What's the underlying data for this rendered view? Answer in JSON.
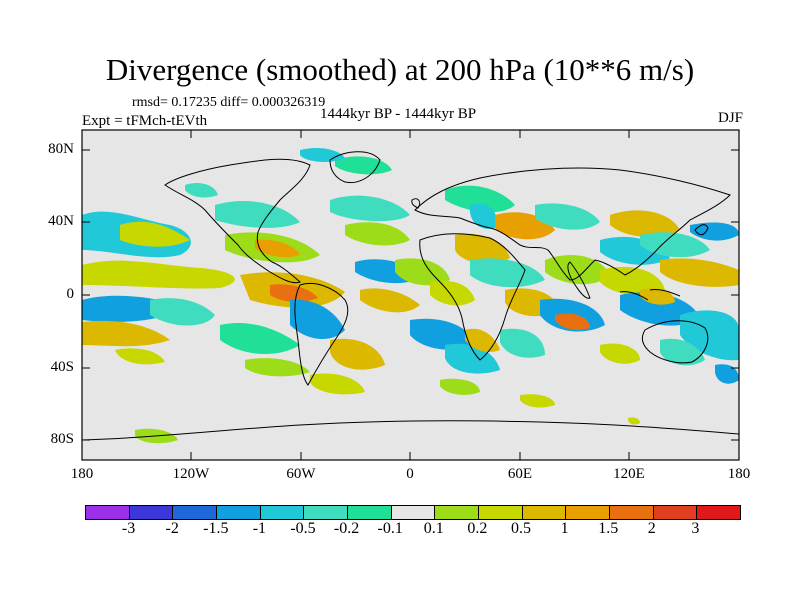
{
  "title": "Divergence (smoothed) at 200 hPa (10**6 m/s)",
  "stats": "rmsd= 0.17235 diff= 0.000326319",
  "experiment": "Expt = tFMch-tEVth",
  "period": "1444kyr BP - 1444kyr BP",
  "season": "DJF",
  "lat_labels": [
    "80N",
    "40N",
    "0",
    "40S",
    "80S"
  ],
  "lon_labels": [
    "180",
    "120W",
    "60W",
    "0",
    "60E",
    "120E",
    "180"
  ],
  "legend": {
    "colors": [
      "#9c2fe8",
      "#3b37d8",
      "#1f68d8",
      "#10a0e0",
      "#20c8d8",
      "#40dcc0",
      "#20e098",
      "#e6e6e6",
      "#9ddc18",
      "#c6d800",
      "#dcb800",
      "#e8a000",
      "#e87010",
      "#e04020",
      "#e01818"
    ],
    "labels": [
      "-3",
      "-2",
      "-1.5",
      "-1",
      "-0.5",
      "-0.2",
      "-0.1",
      "0.1",
      "0.2",
      "0.5",
      "1",
      "1.5",
      "2",
      "3"
    ]
  }
}
